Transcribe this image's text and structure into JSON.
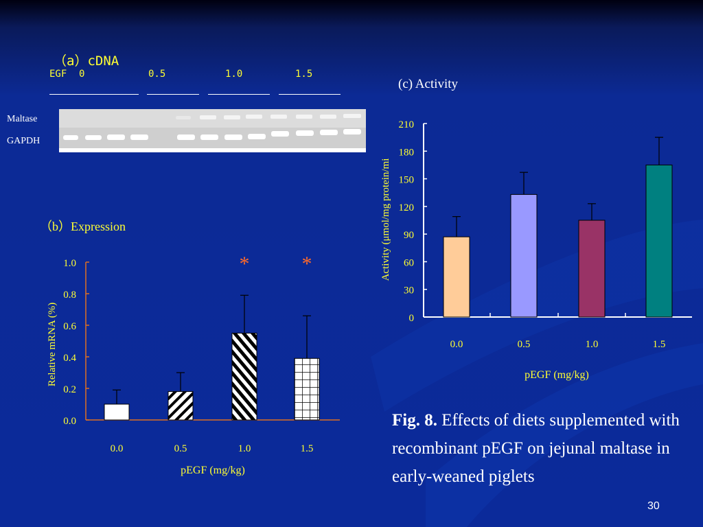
{
  "colors": {
    "background": "#0c2a95",
    "label_yellow": "#ffff33",
    "axis_orange": "#e07020",
    "asterisk": "#ff6a2a",
    "bar_peach": "#ffcc99",
    "bar_lavender": "#9999ff",
    "bar_maroon": "#993366",
    "bar_teal": "#008080"
  },
  "panel_a": {
    "title": "（a）cDNA",
    "egf_label": "EGF",
    "groups": [
      "0",
      "0.5",
      "1.0",
      "1.5"
    ],
    "row_labels": [
      "Maltase",
      "GAPDH"
    ]
  },
  "panel_b": {
    "title": "（b）Expression"
  },
  "panel_c": {
    "title": "(c) Activity"
  },
  "caption": {
    "fig_label": "Fig. 8.",
    "text": " Effects of diets supplemented with recombinant pEGF on jejunal maltase in early-weaned piglets"
  },
  "page_number": "30",
  "chart_data": [
    {
      "type": "bar",
      "title": "（b）Expression",
      "categories": [
        "0.0",
        "0.5",
        "1.0",
        "1.5"
      ],
      "values": [
        0.1,
        0.18,
        0.55,
        0.39
      ],
      "errors": [
        0.09,
        0.12,
        0.24,
        0.27
      ],
      "patterns": [
        "white",
        "diagonal-stripes",
        "dense-diagonal-stripes",
        "grid"
      ],
      "significance": [
        "",
        "",
        "*",
        "*"
      ],
      "xlabel": "pEGF (mg/kg)",
      "ylabel": "Relative mRNA (%)",
      "ylim": [
        0,
        1.0
      ],
      "yticks": [
        "0.0",
        "0.2",
        "0.4",
        "0.6",
        "0.8",
        "1.0"
      ],
      "grid": false
    },
    {
      "type": "bar",
      "title": "(c) Activity",
      "categories": [
        "0.0",
        "0.5",
        "1.0",
        "1.5"
      ],
      "values": [
        87,
        133,
        105,
        165
      ],
      "errors": [
        22,
        24,
        18,
        30
      ],
      "colors": [
        "#ffcc99",
        "#9999ff",
        "#993366",
        "#008080"
      ],
      "xlabel": "pEGF (mg/kg)",
      "ylabel": "Activity (μmol/mg protein/mi",
      "ylim": [
        0,
        210
      ],
      "yticks": [
        "0",
        "30",
        "60",
        "90",
        "120",
        "150",
        "180",
        "210"
      ],
      "grid": false
    }
  ]
}
